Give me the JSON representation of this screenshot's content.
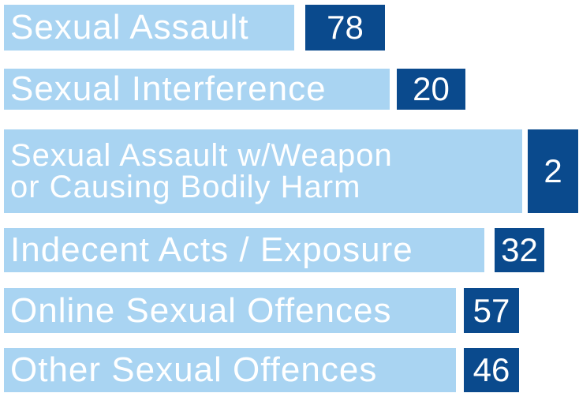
{
  "items": [
    {
      "lines": [
        "Sexual Assault"
      ],
      "count": 78
    },
    {
      "lines": [
        "Sexual Interference"
      ],
      "count": 20
    },
    {
      "lines": [
        "Sexual Assault w/Weapon",
        "or Causing Bodily Harm"
      ],
      "count": 2
    },
    {
      "lines": [
        "Indecent Acts / Exposure"
      ],
      "count": 32
    },
    {
      "lines": [
        "Online Sexual Offences"
      ],
      "count": 57
    },
    {
      "lines": [
        "Other Sexual Offences"
      ],
      "count": 46
    }
  ]
}
